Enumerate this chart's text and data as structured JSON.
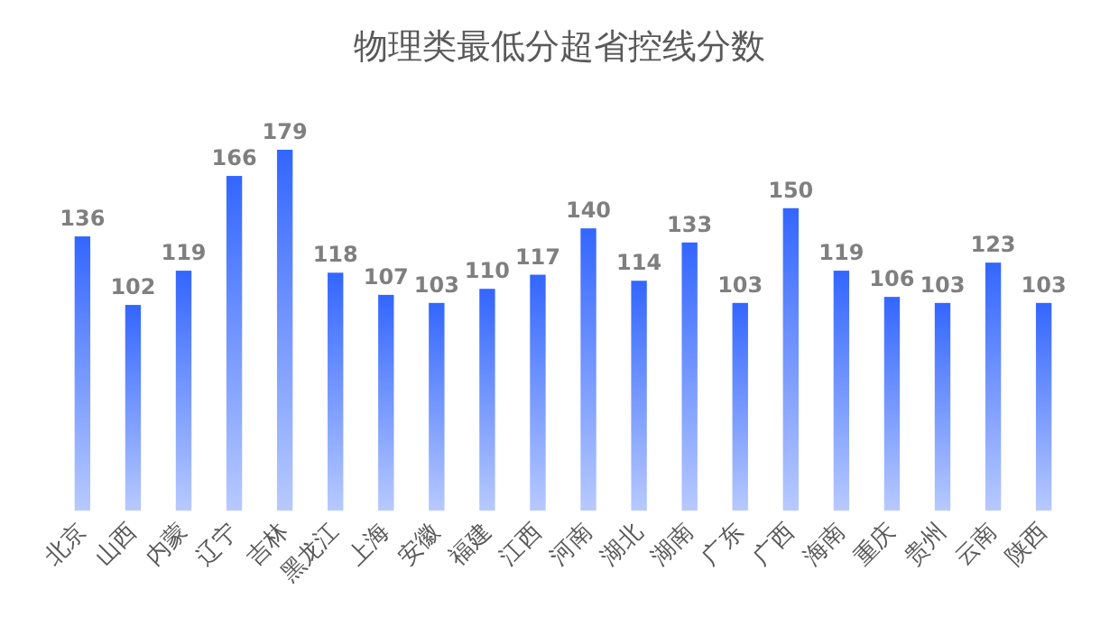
{
  "chart_data": {
    "type": "bar",
    "title": "物理类最低分超省控线分数",
    "categories": [
      "北京",
      "山西",
      "内蒙",
      "辽宁",
      "吉林",
      "黑龙江",
      "上海",
      "安徽",
      "福建",
      "江西",
      "河南",
      "湖北",
      "湖南",
      "广东",
      "广西",
      "海南",
      "重庆",
      "贵州",
      "云南",
      "陕西"
    ],
    "values": [
      136,
      102,
      119,
      166,
      179,
      118,
      107,
      103,
      110,
      117,
      140,
      114,
      133,
      103,
      150,
      119,
      106,
      103,
      123,
      103
    ],
    "color": "#3366ff",
    "data_labels": true
  }
}
